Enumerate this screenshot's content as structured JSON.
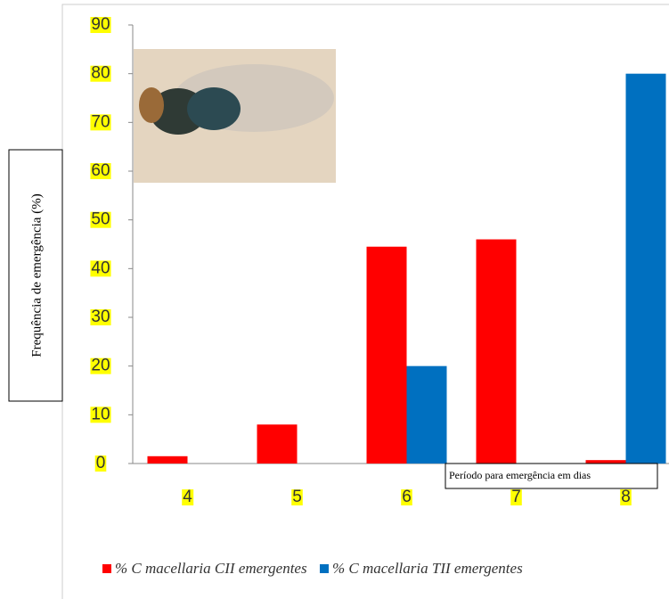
{
  "chart_data": {
    "type": "bar",
    "categories": [
      "4",
      "5",
      "6",
      "7",
      "8"
    ],
    "series": [
      {
        "name": "% C macellaria CII emergentes",
        "color": "#ff0000",
        "values": [
          1.5,
          8,
          44.5,
          46,
          0.7
        ]
      },
      {
        "name": "% C macellaria TII emergentes",
        "color": "#0070c0",
        "values": [
          0,
          0,
          20,
          0,
          80
        ]
      }
    ],
    "ylim": [
      0,
      90
    ],
    "yticks": [
      0,
      10,
      20,
      30,
      40,
      50,
      60,
      70,
      80,
      90
    ],
    "ylabel": "Frequência de emergência (%)",
    "xlabel": "Período para emergência em dias",
    "tick_highlight": "#ffff00",
    "legend": "bottom"
  }
}
